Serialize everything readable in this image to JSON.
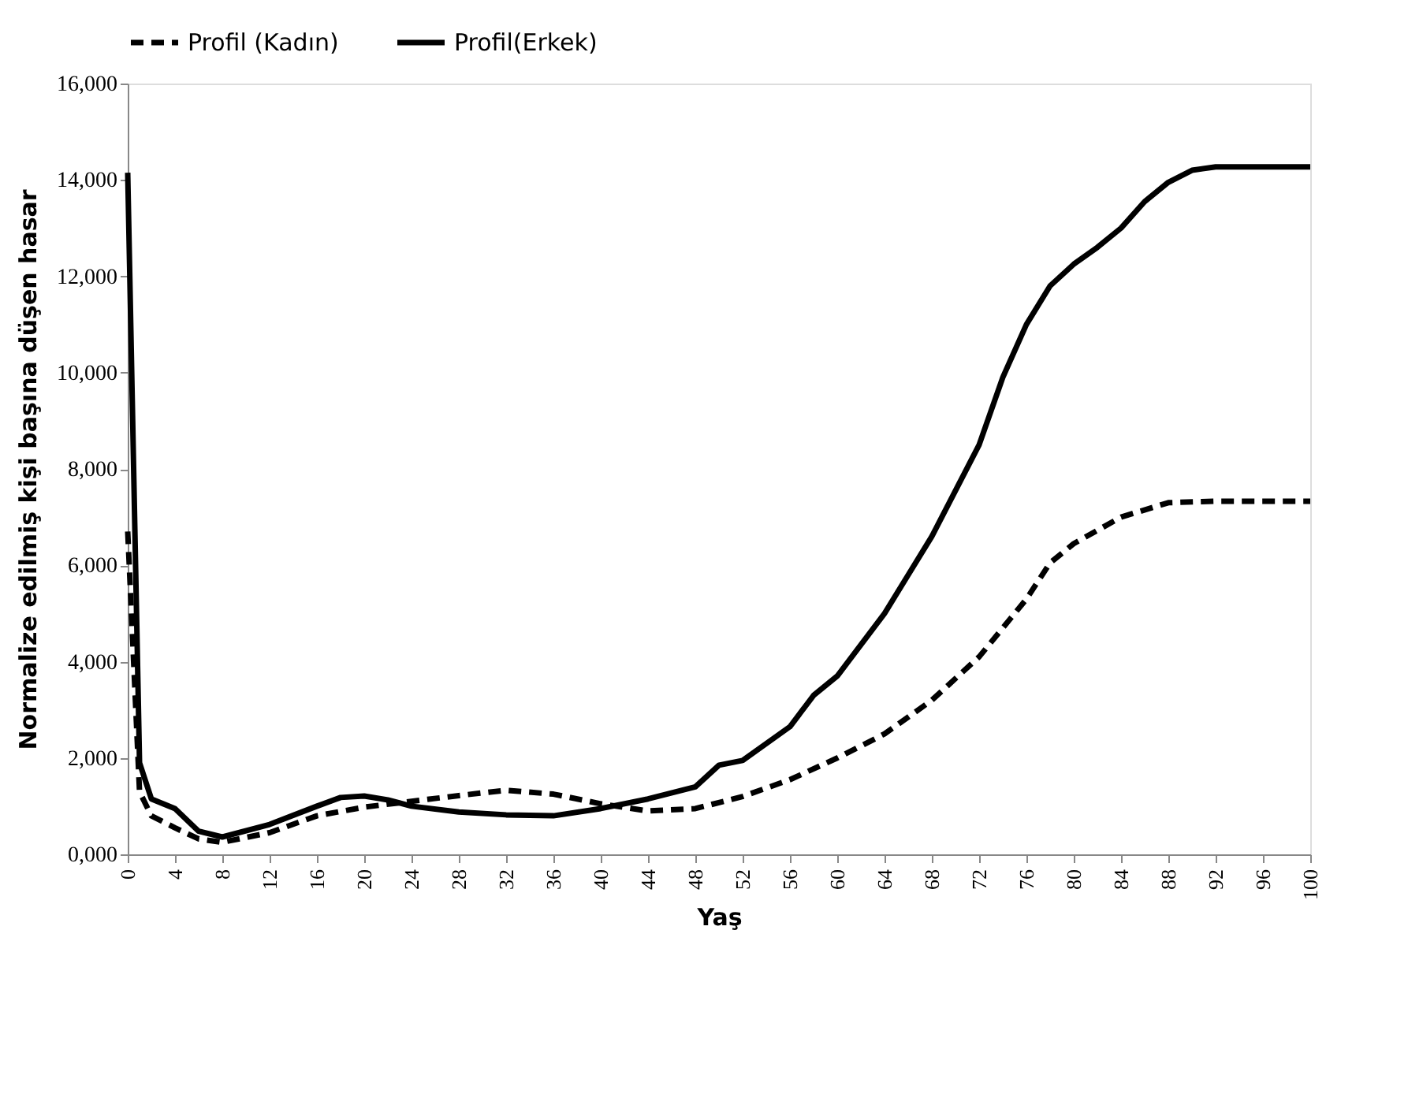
{
  "chart_data": {
    "type": "line",
    "xlabel": "Yaş",
    "ylabel": "Normalize edilmiş kişi başına düşen hasar",
    "xlim": [
      0,
      100
    ],
    "xticks": [
      0,
      4,
      8,
      12,
      16,
      20,
      24,
      28,
      32,
      36,
      40,
      44,
      48,
      52,
      56,
      60,
      64,
      68,
      72,
      76,
      80,
      84,
      88,
      92,
      96,
      100
    ],
    "ylim": [
      0,
      16000
    ],
    "yticks": [
      {
        "value": 0,
        "label": "0,000"
      },
      {
        "value": 2000,
        "label": "2,000"
      },
      {
        "value": 4000,
        "label": "4,000"
      },
      {
        "value": 6000,
        "label": "6,000"
      },
      {
        "value": 8000,
        "label": "8,000"
      },
      {
        "value": 10000,
        "label": "10,000"
      },
      {
        "value": 12000,
        "label": "12,000"
      },
      {
        "value": 14000,
        "label": "14,000"
      },
      {
        "value": 16000,
        "label": "16,000"
      }
    ],
    "grid": false,
    "legend": "top",
    "marker": "none",
    "series": [
      {
        "name": "Profil (Kadın)",
        "color": "#000000",
        "line_style": "dashed",
        "x": [
          0,
          1,
          2,
          4,
          6,
          8,
          12,
          16,
          20,
          24,
          28,
          32,
          36,
          40,
          44,
          48,
          52,
          56,
          60,
          64,
          68,
          72,
          76,
          78,
          80,
          84,
          88,
          92,
          100
        ],
        "values": [
          6700,
          1300,
          800,
          550,
          320,
          250,
          450,
          800,
          980,
          1100,
          1220,
          1330,
          1250,
          1050,
          900,
          950,
          1200,
          1550,
          2000,
          2500,
          3200,
          4100,
          5300,
          6050,
          6450,
          7000,
          7300,
          7330,
          7330
        ]
      },
      {
        "name": "Profil(Erkek)",
        "color": "#000000",
        "line_style": "solid",
        "x": [
          0,
          1,
          2,
          4,
          6,
          8,
          12,
          16,
          18,
          20,
          22,
          24,
          28,
          32,
          36,
          40,
          44,
          48,
          50,
          52,
          56,
          58,
          60,
          64,
          66,
          68,
          72,
          74,
          76,
          78,
          80,
          82,
          84,
          86,
          88,
          90,
          92,
          100
        ],
        "values": [
          14150,
          1900,
          1150,
          950,
          480,
          360,
          620,
          1000,
          1180,
          1210,
          1130,
          1000,
          880,
          820,
          800,
          950,
          1150,
          1400,
          1850,
          1950,
          2650,
          3300,
          3700,
          5000,
          5800,
          6600,
          8500,
          9900,
          11000,
          11800,
          12250,
          12600,
          13000,
          13550,
          13950,
          14200,
          14270,
          14270
        ]
      }
    ]
  }
}
